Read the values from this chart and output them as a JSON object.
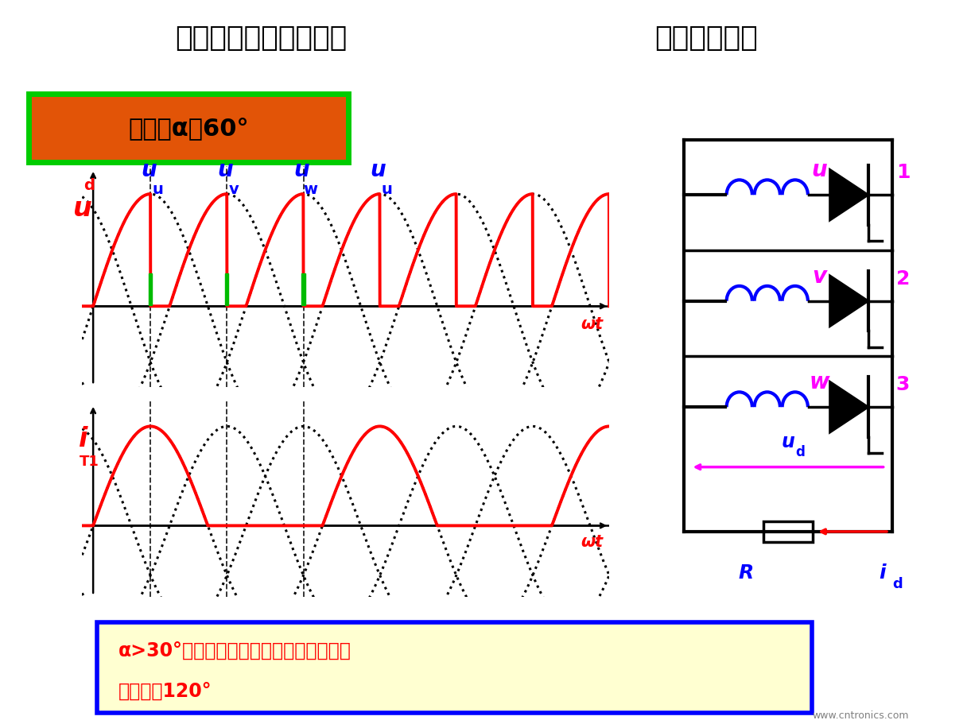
{
  "title_left": "三相半波可控整流电路",
  "title_right": "纯电阻性负载",
  "header_bg": "#b0b0cc",
  "control_angle_text": "控制角α＝60°",
  "bottom_text_line1": "α>30°时电流断续，１、２、３晶闸管导",
  "bottom_text_line2": "通角小于120°",
  "bg_color": "#ffffff",
  "alpha_deg": 60,
  "magenta": "#ff00ff",
  "blue_color": "#0000ff",
  "red_color": "#ff0000",
  "green_color": "#00bb00",
  "black_color": "#000000",
  "website": "www.cntronics.com"
}
